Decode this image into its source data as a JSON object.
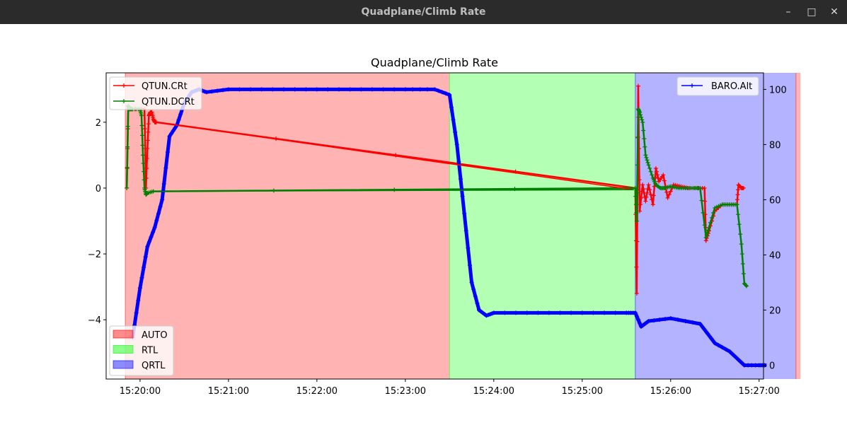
{
  "window": {
    "title": "Quadplane/Climb Rate",
    "buttons": {
      "minimize": "–",
      "maximize": "□",
      "close": "✕"
    }
  },
  "chart_data": {
    "type": "line",
    "title": "Quadplane/Climb Rate",
    "xlabel": "",
    "ylabel_left": "",
    "ylabel_right": "",
    "x_ticks": [
      "15:20:00",
      "15:21:00",
      "15:22:00",
      "15:23:00",
      "15:24:00",
      "15:25:00",
      "15:26:00",
      "15:27:00"
    ],
    "x_range_seconds_after_15_20": [
      -23,
      423
    ],
    "y_left_ticks": [
      "2",
      "0",
      "−2",
      "−4"
    ],
    "y_left_range": [
      -5.8,
      3.5
    ],
    "y_right_ticks": [
      "0",
      "20",
      "40",
      "60",
      "80",
      "100"
    ],
    "y_right_range": [
      -5,
      106
    ],
    "grid": false,
    "legend_left": {
      "placement": "upper-left",
      "entries": [
        "QTUN.CRt",
        "QTUN.DCRt"
      ]
    },
    "legend_right": {
      "placement": "upper-right",
      "entries": [
        "BARO.Alt"
      ]
    },
    "legend_modes": {
      "placement": "lower-left",
      "entries": [
        "AUTO",
        "RTL",
        "QRTL"
      ]
    },
    "colors": {
      "AUTO": "#ff0000",
      "RTL": "#00ff00",
      "QRTL": "#0000ff",
      "QTUN.CRt": "#ff0000",
      "QTUN.DCRt": "#008000",
      "BARO.Alt": "#0000ff"
    },
    "mode_spans": [
      {
        "mode": "AUTO",
        "start": "15:19:50",
        "end": "15:23:30"
      },
      {
        "mode": "RTL",
        "start": "15:23:30",
        "end": "15:25:36"
      },
      {
        "mode": "QRTL",
        "start": "15:25:36",
        "end": "15:27:25"
      },
      {
        "mode": "AUTO",
        "start": "15:27:25",
        "end": "15:27:28"
      }
    ],
    "series": [
      {
        "name": "QTUN.CRt",
        "axis": "left",
        "x": [
          "15:19:51",
          "15:19:52",
          "15:19:53",
          "15:19:55",
          "15:20:03",
          "15:20:04",
          "15:20:05",
          "15:20:06",
          "15:20:07",
          "15:20:08",
          "15:20:09",
          "15:20:10",
          "15:20:11",
          "15:25:36",
          "15:25:37",
          "15:25:38",
          "15:25:39",
          "15:25:41",
          "15:25:43",
          "15:25:45",
          "15:25:48",
          "15:25:50",
          "15:25:52",
          "15:25:55",
          "15:25:58",
          "15:26:02",
          "15:26:07",
          "15:26:12",
          "15:26:17",
          "15:26:23",
          "15:26:24",
          "15:26:26",
          "15:26:30",
          "15:26:35",
          "15:26:40",
          "15:26:45",
          "15:26:46",
          "15:26:48",
          "15:26:50"
        ],
        "y": [
          0,
          2.4,
          2.4,
          2.4,
          2.4,
          0,
          1.2,
          2.2,
          2.3,
          2.3,
          2.1,
          2.0,
          2.0,
          0,
          -3.2,
          3.1,
          -0.7,
          0.1,
          -0.4,
          0.1,
          -0.5,
          0.6,
          0.2,
          0.4,
          -0.3,
          0.1,
          0.05,
          0,
          0,
          0,
          -1.6,
          -1.3,
          -0.7,
          -0.5,
          -0.5,
          -0.5,
          0.1,
          0,
          0
        ]
      },
      {
        "name": "QTUN.DCRt",
        "axis": "left",
        "x": [
          "15:19:51",
          "15:19:52",
          "15:19:53",
          "15:19:55",
          "15:20:00",
          "15:20:01",
          "15:20:02",
          "15:20:03",
          "15:20:04",
          "15:20:05",
          "15:20:09",
          "15:25:36",
          "15:25:37",
          "15:25:38",
          "15:25:39",
          "15:25:41",
          "15:25:43",
          "15:25:45",
          "15:25:48",
          "15:25:50",
          "15:25:53",
          "15:25:56",
          "15:26:00",
          "15:26:05",
          "15:26:10",
          "15:26:16",
          "15:26:20",
          "15:26:24",
          "15:26:26",
          "15:26:30",
          "15:26:35",
          "15:26:40",
          "15:26:45",
          "15:26:48",
          "15:26:50",
          "15:26:52"
        ],
        "y": [
          0,
          2.5,
          2.4,
          2.4,
          2.4,
          2.2,
          1.0,
          0,
          -0.2,
          -0.15,
          -0.1,
          0,
          -1.0,
          2.4,
          2.3,
          2.0,
          1.0,
          0.7,
          0.3,
          0.1,
          0.0,
          0.0,
          0.05,
          0.0,
          0.0,
          0.0,
          0.0,
          -1.5,
          -1.2,
          -0.6,
          -0.5,
          -0.5,
          -0.5,
          -1.7,
          -2.9,
          -3.0
        ]
      },
      {
        "name": "BARO.Alt",
        "axis": "right",
        "x": [
          "15:19:55",
          "15:20:00",
          "15:20:05",
          "15:20:10",
          "15:20:15",
          "15:20:20",
          "15:20:25",
          "15:20:30",
          "15:20:35",
          "15:20:40",
          "15:20:45",
          "15:21:00",
          "15:21:30",
          "15:22:00",
          "15:22:30",
          "15:23:00",
          "15:23:20",
          "15:23:30",
          "15:23:35",
          "15:23:40",
          "15:23:45",
          "15:23:50",
          "15:23:55",
          "15:24:00",
          "15:24:30",
          "15:25:00",
          "15:25:30",
          "15:25:36",
          "15:25:40",
          "15:25:45",
          "15:26:00",
          "15:26:20",
          "15:26:30",
          "15:26:40",
          "15:26:50",
          "15:27:00",
          "15:27:05"
        ],
        "y": [
          10,
          28,
          43,
          50,
          60,
          83,
          87,
          95,
          99,
          100,
          99,
          100,
          100,
          100,
          100,
          100,
          100,
          98,
          80,
          55,
          30,
          20,
          18,
          19,
          19,
          19,
          19,
          19,
          14,
          16,
          17,
          15,
          8,
          5,
          0,
          0,
          0
        ]
      },
      {
        "name": "",
        "axis": "left",
        "x": [
          "15:20:11",
          "15:25:35"
        ],
        "y": [
          2.0,
          -0.05
        ],
        "color": "#ff0000"
      },
      {
        "name": "",
        "axis": "left",
        "x": [
          "15:20:09",
          "15:25:35"
        ],
        "y": [
          -0.1,
          -0.05
        ],
        "color": "#008000"
      }
    ]
  }
}
